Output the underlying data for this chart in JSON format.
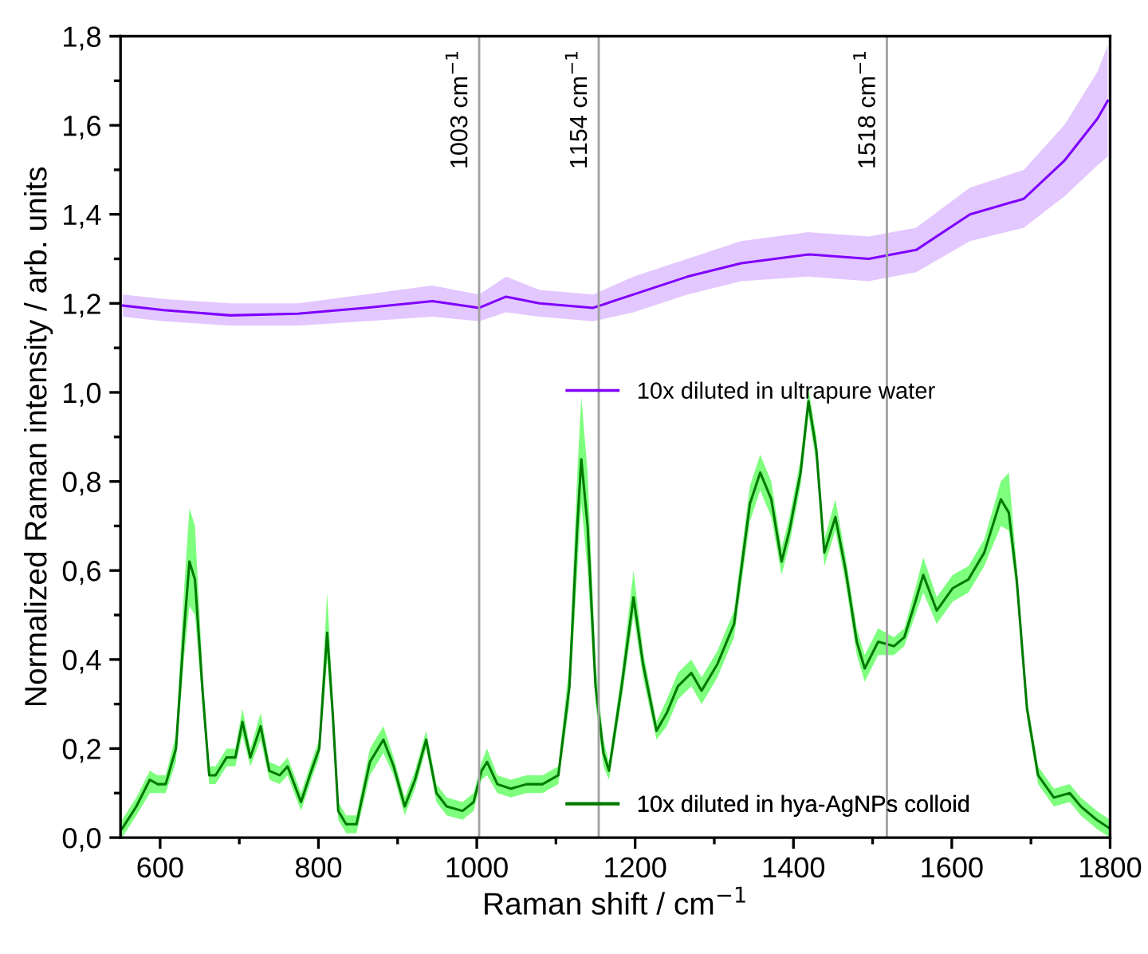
{
  "chart_data": {
    "type": "line",
    "xlabel": "Raman shift / cm$^{−1}$",
    "ylabel": "Normalized Raman intensity / arb. units",
    "xlim": [
      550,
      1800
    ],
    "xticks": [
      600,
      800,
      1000,
      1200,
      1400,
      1600,
      1800
    ],
    "ylim": [
      0,
      1.8
    ],
    "yticks": [
      {
        "value": 0,
        "label": "0,0"
      },
      {
        "value": 0.2,
        "label": "0,2"
      },
      {
        "value": 0.4,
        "label": "0,4"
      },
      {
        "value": 0.6,
        "label": "0,6"
      },
      {
        "value": 0.8,
        "label": "0,8"
      },
      {
        "value": 1.0,
        "label": "1,0"
      },
      {
        "value": 1.2,
        "label": "1,2"
      },
      {
        "value": 1.4,
        "label": "1,4"
      },
      {
        "value": 1.6,
        "label": "1,6"
      },
      {
        "value": 1.8,
        "label": "1,8"
      }
    ],
    "grid": false,
    "legend": "right",
    "ref_lines": [
      {
        "axis": "x",
        "value": 1003,
        "label": "1003 cm$^{−1}$",
        "color": "#a0a0a0"
      },
      {
        "axis": "x",
        "value": 1154,
        "label": "1154 cm$^{−1}$",
        "color": "#a0a0a0"
      },
      {
        "axis": "x",
        "value": 1518,
        "label": "1518 cm$^{−1}$",
        "color": "#a0a0a0"
      }
    ],
    "series": [
      {
        "name": "10x diluted in ultrapure water",
        "color": "#7f00ff",
        "x": [
          553,
          604,
          689,
          774,
          859,
          944,
          1003,
          1037,
          1079,
          1147,
          1198,
          1266,
          1334,
          1419,
          1495,
          1555,
          1623,
          1691,
          1742,
          1784,
          1797
        ],
        "values": [
          1.195,
          1.185,
          1.173,
          1.177,
          1.19,
          1.205,
          1.19,
          1.215,
          1.2,
          1.19,
          1.22,
          1.26,
          1.29,
          1.31,
          1.3,
          1.32,
          1.4,
          1.435,
          1.52,
          1.615,
          1.655
        ],
        "lower": [
          1.17,
          1.16,
          1.15,
          1.15,
          1.16,
          1.17,
          1.16,
          1.18,
          1.17,
          1.16,
          1.18,
          1.22,
          1.25,
          1.26,
          1.25,
          1.27,
          1.34,
          1.37,
          1.44,
          1.51,
          1.53
        ],
        "upper": [
          1.22,
          1.21,
          1.2,
          1.2,
          1.22,
          1.24,
          1.22,
          1.26,
          1.23,
          1.22,
          1.26,
          1.3,
          1.34,
          1.36,
          1.35,
          1.37,
          1.46,
          1.5,
          1.6,
          1.72,
          1.78
        ]
      },
      {
        "name": "10x diluted in hya-AgNPs colloid",
        "color": "#007a00",
        "x": [
          552,
          570,
          587,
          597,
          607,
          620,
          630,
          637,
          644,
          654,
          662,
          670,
          684,
          695,
          704,
          714,
          727,
          738,
          751,
          761,
          778,
          791,
          801,
          811,
          818,
          825,
          835,
          848,
          865,
          882,
          895,
          909,
          922,
          936,
          949,
          962,
          982,
          996,
          1006,
          1013,
          1026,
          1043,
          1063,
          1083,
          1103,
          1117,
          1127,
          1132,
          1140,
          1150,
          1160,
          1167,
          1183,
          1198,
          1210,
          1227,
          1240,
          1254,
          1271,
          1284,
          1304,
          1325,
          1345,
          1358,
          1372,
          1385,
          1395,
          1409,
          1419,
          1429,
          1439,
          1453,
          1466,
          1480,
          1490,
          1507,
          1527,
          1540,
          1554,
          1564,
          1581,
          1601,
          1621,
          1641,
          1662,
          1672,
          1682,
          1695,
          1709,
          1729,
          1749,
          1763,
          1783,
          1800
        ],
        "values": [
          0.02,
          0.07,
          0.13,
          0.12,
          0.12,
          0.2,
          0.46,
          0.62,
          0.58,
          0.32,
          0.14,
          0.14,
          0.18,
          0.18,
          0.26,
          0.18,
          0.25,
          0.15,
          0.14,
          0.16,
          0.08,
          0.15,
          0.2,
          0.46,
          0.28,
          0.06,
          0.03,
          0.03,
          0.17,
          0.22,
          0.16,
          0.07,
          0.13,
          0.22,
          0.1,
          0.07,
          0.06,
          0.08,
          0.15,
          0.17,
          0.12,
          0.11,
          0.12,
          0.12,
          0.14,
          0.34,
          0.7,
          0.85,
          0.7,
          0.34,
          0.19,
          0.15,
          0.34,
          0.54,
          0.39,
          0.24,
          0.28,
          0.34,
          0.37,
          0.33,
          0.39,
          0.48,
          0.75,
          0.82,
          0.76,
          0.62,
          0.69,
          0.82,
          0.98,
          0.87,
          0.64,
          0.72,
          0.6,
          0.44,
          0.38,
          0.44,
          0.43,
          0.45,
          0.53,
          0.59,
          0.51,
          0.56,
          0.58,
          0.64,
          0.76,
          0.73,
          0.58,
          0.29,
          0.14,
          0.09,
          0.1,
          0.07,
          0.04,
          0.02
        ],
        "lower": [
          0.0,
          0.05,
          0.1,
          0.1,
          0.1,
          0.17,
          0.4,
          0.52,
          0.5,
          0.29,
          0.12,
          0.12,
          0.16,
          0.16,
          0.23,
          0.16,
          0.22,
          0.13,
          0.12,
          0.14,
          0.06,
          0.13,
          0.18,
          0.4,
          0.25,
          0.04,
          0.01,
          0.01,
          0.14,
          0.19,
          0.14,
          0.05,
          0.11,
          0.2,
          0.08,
          0.05,
          0.04,
          0.06,
          0.13,
          0.14,
          0.1,
          0.09,
          0.1,
          0.1,
          0.12,
          0.3,
          0.6,
          0.75,
          0.6,
          0.3,
          0.16,
          0.13,
          0.31,
          0.5,
          0.36,
          0.22,
          0.25,
          0.31,
          0.34,
          0.3,
          0.36,
          0.45,
          0.71,
          0.78,
          0.72,
          0.59,
          0.66,
          0.79,
          0.95,
          0.84,
          0.61,
          0.69,
          0.57,
          0.41,
          0.35,
          0.41,
          0.41,
          0.43,
          0.5,
          0.55,
          0.48,
          0.53,
          0.55,
          0.61,
          0.7,
          0.69,
          0.55,
          0.27,
          0.12,
          0.07,
          0.08,
          0.05,
          0.02,
          0.0
        ],
        "upper": [
          0.04,
          0.09,
          0.15,
          0.14,
          0.14,
          0.23,
          0.55,
          0.74,
          0.7,
          0.36,
          0.16,
          0.16,
          0.2,
          0.2,
          0.29,
          0.2,
          0.28,
          0.17,
          0.16,
          0.18,
          0.1,
          0.17,
          0.22,
          0.55,
          0.31,
          0.08,
          0.05,
          0.05,
          0.2,
          0.25,
          0.18,
          0.09,
          0.15,
          0.24,
          0.12,
          0.09,
          0.08,
          0.1,
          0.17,
          0.2,
          0.14,
          0.13,
          0.14,
          0.14,
          0.16,
          0.39,
          0.82,
          0.99,
          0.82,
          0.39,
          0.22,
          0.17,
          0.37,
          0.6,
          0.42,
          0.26,
          0.31,
          0.37,
          0.4,
          0.36,
          0.42,
          0.51,
          0.79,
          0.86,
          0.8,
          0.65,
          0.72,
          0.85,
          1.01,
          0.9,
          0.67,
          0.76,
          0.63,
          0.47,
          0.41,
          0.47,
          0.45,
          0.47,
          0.56,
          0.63,
          0.54,
          0.59,
          0.61,
          0.67,
          0.8,
          0.82,
          0.61,
          0.31,
          0.16,
          0.11,
          0.12,
          0.09,
          0.06,
          0.04
        ]
      }
    ]
  }
}
